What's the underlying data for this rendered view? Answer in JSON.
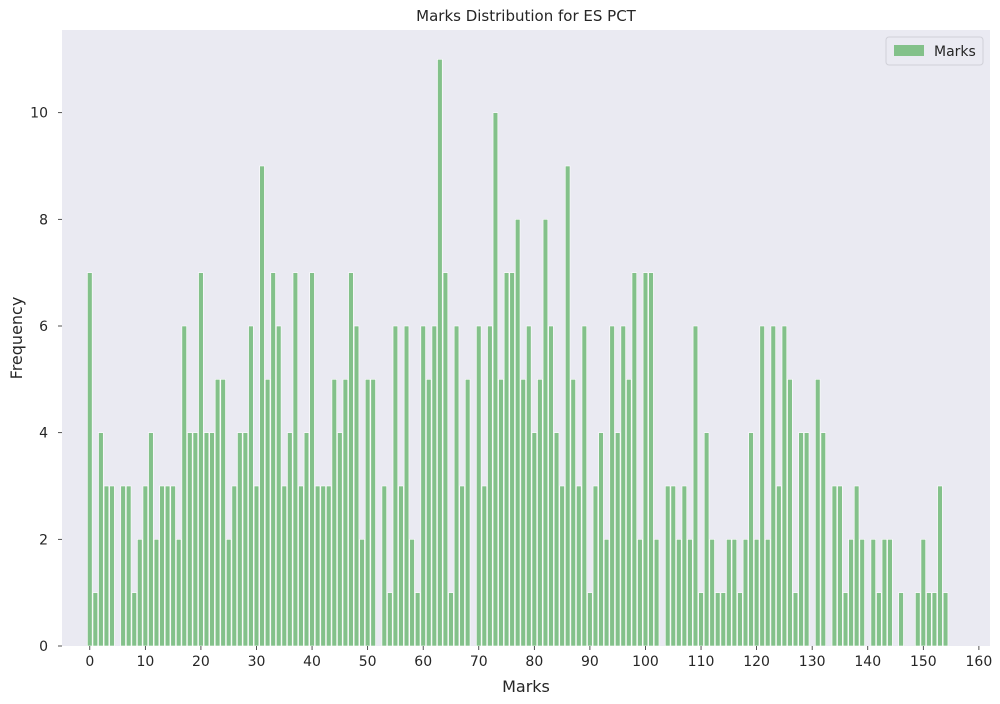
{
  "chart_data": {
    "type": "bar",
    "title": "Marks Distribution for ES PCT",
    "xlabel": "Marks",
    "ylabel": "Frequency",
    "xlim": [
      -5,
      162
    ],
    "ylim": [
      0,
      11.55
    ],
    "xticks": [
      0,
      10,
      20,
      30,
      40,
      50,
      60,
      70,
      80,
      90,
      100,
      110,
      120,
      130,
      140,
      150,
      160
    ],
    "yticks": [
      0,
      2,
      4,
      6,
      8,
      10
    ],
    "grid": false,
    "legend": "top-right",
    "series": [
      {
        "name": "Marks",
        "color": "#83c18a",
        "x": [
          0,
          1,
          2,
          3,
          4,
          6,
          7,
          8,
          9,
          10,
          11,
          12,
          13,
          14,
          15,
          16,
          17,
          18,
          19,
          20,
          21,
          22,
          23,
          24,
          25,
          26,
          27,
          28,
          29,
          30,
          31,
          32,
          33,
          34,
          35,
          36,
          37,
          38,
          39,
          40,
          41,
          42,
          43,
          44,
          45,
          46,
          47,
          48,
          49,
          50,
          51,
          53,
          54,
          55,
          56,
          57,
          58,
          59,
          60,
          61,
          62,
          63,
          64,
          65,
          66,
          67,
          68,
          70,
          71,
          72,
          73,
          74,
          75,
          76,
          77,
          78,
          79,
          80,
          81,
          82,
          83,
          84,
          85,
          86,
          87,
          88,
          89,
          90,
          91,
          92,
          93,
          94,
          95,
          96,
          97,
          98,
          99,
          100,
          101,
          102,
          104,
          105,
          106,
          107,
          108,
          109,
          110,
          111,
          112,
          113,
          114,
          115,
          116,
          117,
          118,
          119,
          120,
          121,
          122,
          123,
          124,
          125,
          126,
          127,
          128,
          129,
          131,
          132,
          134,
          135,
          136,
          137,
          138,
          139,
          141,
          142,
          143,
          144,
          146,
          149,
          150,
          151,
          152,
          153,
          154
        ],
        "values": [
          7,
          1,
          4,
          3,
          3,
          3,
          3,
          1,
          2,
          3,
          4,
          2,
          3,
          3,
          3,
          2,
          6,
          4,
          4,
          7,
          4,
          4,
          5,
          5,
          2,
          3,
          4,
          4,
          6,
          3,
          9,
          5,
          7,
          6,
          3,
          4,
          7,
          3,
          4,
          7,
          3,
          3,
          3,
          5,
          4,
          5,
          7,
          6,
          2,
          5,
          5,
          3,
          1,
          6,
          3,
          6,
          2,
          1,
          6,
          5,
          6,
          11,
          7,
          1,
          6,
          3,
          5,
          6,
          3,
          6,
          10,
          5,
          7,
          7,
          8,
          5,
          6,
          4,
          5,
          8,
          6,
          4,
          3,
          9,
          5,
          3,
          6,
          1,
          3,
          4,
          2,
          6,
          4,
          6,
          5,
          7,
          2,
          7,
          7,
          2,
          3,
          3,
          2,
          3,
          2,
          6,
          1,
          4,
          2,
          1,
          1,
          2,
          2,
          1,
          2,
          4,
          2,
          6,
          2,
          6,
          3,
          6,
          5,
          1,
          4,
          4,
          5,
          4,
          3,
          3,
          1,
          2,
          3,
          2,
          2,
          1,
          2,
          2,
          1,
          1,
          2,
          1,
          1,
          3,
          1
        ]
      }
    ]
  }
}
